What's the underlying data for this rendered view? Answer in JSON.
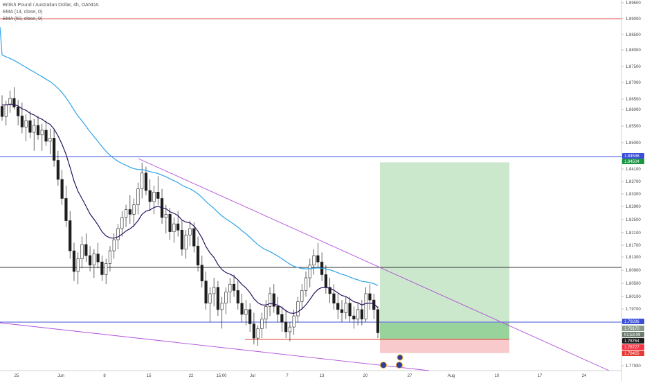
{
  "legend": {
    "symbol": "British Pound / Australian Dollar, 4h, OANDA",
    "ema14": "EMA (14, close, 0)",
    "ema50": "EMA (50, close, 0)"
  },
  "chart_data": {
    "type": "candlestick",
    "symbol": "GBPAUD",
    "timeframe": "4h",
    "source": "OANDA",
    "price_axis": {
      "ylim": [
        1.7765,
        1.8965
      ],
      "ticks": [
        "1.89500",
        "1.89000",
        "1.88500",
        "1.88000",
        "1.87500",
        "1.87000",
        "1.86500",
        "1.86000",
        "1.85500",
        "1.85000",
        "1.84100",
        "1.83700",
        "1.83300",
        "1.82900",
        "1.82500",
        "1.82100",
        "1.81700",
        "1.81300",
        "1.80900",
        "1.80500",
        "1.80100",
        "1.79700",
        "1.77930"
      ]
    },
    "time_axis": {
      "ticks": [
        "25",
        "Jun",
        "8",
        "15",
        "22",
        "15:00",
        "Jul",
        "7",
        "13",
        "20",
        "27",
        "Aug",
        "10",
        "17",
        "24"
      ]
    },
    "price_tags": [
      {
        "value": "1.84536",
        "color": "#3b4fd8"
      },
      {
        "value": "1.84504",
        "color": "#1a9641"
      },
      {
        "value": "1.79286",
        "color": "#3b4fd8"
      },
      {
        "value": "1.79170",
        "color": "#8a9a8a"
      },
      {
        "value": "01:53:09",
        "color": "#6e7e6e"
      },
      {
        "value": "1.78764",
        "color": "#1e1e1e"
      },
      {
        "value": "1.78727",
        "color": "#f23645"
      },
      {
        "value": "1.78455",
        "color": "#e53935"
      }
    ],
    "horizontal_lines": [
      {
        "price": 1.8904,
        "color": "#e04848"
      },
      {
        "price": 1.84536,
        "color": "#3b4fd8"
      },
      {
        "price": 1.8098,
        "color": "#333333"
      },
      {
        "price": 1.79286,
        "color": "#3b4fd8"
      }
    ],
    "trend_lines": [
      {
        "from_t": 118,
        "from_p": 1.8453,
        "to_t": 520,
        "to_p": 1.7775,
        "color": "#b14ed8"
      },
      {
        "from_t": 0,
        "from_p": 1.7923,
        "to_t": 390,
        "to_p": 1.7785,
        "color": "#b14ed8"
      }
    ],
    "position": {
      "type": "long",
      "entry": 1.79,
      "stop": 1.7853,
      "target": 1.84536,
      "start_t": 324,
      "end_t": 435
    },
    "series": [
      {
        "name": "EMA (14, close, 0)",
        "color": "#2a0f5c"
      },
      {
        "name": "EMA (50, close, 0)",
        "color": "#2fa4e7"
      }
    ],
    "candles": [
      [
        1.863,
        1.8665,
        1.8585,
        1.8598
      ],
      [
        1.8598,
        1.8648,
        1.857,
        1.8635
      ],
      [
        1.8635,
        1.868,
        1.861,
        1.8655
      ],
      [
        1.8655,
        1.869,
        1.862,
        1.8628
      ],
      [
        1.8628,
        1.865,
        1.857,
        1.86
      ],
      [
        1.86,
        1.8642,
        1.8545,
        1.8565
      ],
      [
        1.8565,
        1.8605,
        1.852,
        1.8585
      ],
      [
        1.8585,
        1.8615,
        1.853,
        1.8548
      ],
      [
        1.8548,
        1.859,
        1.849,
        1.857
      ],
      [
        1.857,
        1.86,
        1.8525,
        1.854
      ],
      [
        1.854,
        1.8575,
        1.849,
        1.8555
      ],
      [
        1.8555,
        1.8585,
        1.8505,
        1.852
      ],
      [
        1.852,
        1.856,
        1.848,
        1.853
      ],
      [
        1.853,
        1.8555,
        1.844,
        1.846
      ],
      [
        1.846,
        1.849,
        1.838,
        1.84
      ],
      [
        1.84,
        1.843,
        1.832,
        1.834
      ],
      [
        1.834,
        1.838,
        1.825,
        1.827
      ],
      [
        1.827,
        1.83,
        1.815,
        1.8175
      ],
      [
        1.8175,
        1.82,
        1.808,
        1.811
      ],
      [
        1.811,
        1.817,
        1.807,
        1.815
      ],
      [
        1.815,
        1.822,
        1.812,
        1.8195
      ],
      [
        1.8195,
        1.823,
        1.814,
        1.816
      ],
      [
        1.816,
        1.819,
        1.811,
        1.813
      ],
      [
        1.813,
        1.818,
        1.809,
        1.8165
      ],
      [
        1.8165,
        1.82,
        1.812,
        1.814
      ],
      [
        1.814,
        1.816,
        1.808,
        1.81
      ],
      [
        1.81,
        1.815,
        1.807,
        1.8135
      ],
      [
        1.8135,
        1.819,
        1.811,
        1.8175
      ],
      [
        1.8175,
        1.823,
        1.815,
        1.821
      ],
      [
        1.821,
        1.826,
        1.818,
        1.8245
      ],
      [
        1.8245,
        1.83,
        1.822,
        1.828
      ],
      [
        1.828,
        1.832,
        1.825,
        1.8305
      ],
      [
        1.8305,
        1.835,
        1.826,
        1.829
      ],
      [
        1.829,
        1.834,
        1.825,
        1.832
      ],
      [
        1.832,
        1.839,
        1.829,
        1.837
      ],
      [
        1.837,
        1.8453,
        1.834,
        1.842
      ],
      [
        1.842,
        1.844,
        1.835,
        1.8365
      ],
      [
        1.8365,
        1.84,
        1.83,
        1.833
      ],
      [
        1.833,
        1.838,
        1.829,
        1.836
      ],
      [
        1.836,
        1.841,
        1.832,
        1.834
      ],
      [
        1.834,
        1.837,
        1.826,
        1.828
      ],
      [
        1.828,
        1.832,
        1.823,
        1.829
      ],
      [
        1.829,
        1.831,
        1.821,
        1.8235
      ],
      [
        1.8235,
        1.828,
        1.82,
        1.826
      ],
      [
        1.826,
        1.83,
        1.822,
        1.824
      ],
      [
        1.824,
        1.827,
        1.816,
        1.818
      ],
      [
        1.818,
        1.824,
        1.815,
        1.8225
      ],
      [
        1.8225,
        1.827,
        1.819,
        1.8245
      ],
      [
        1.8245,
        1.8265,
        1.817,
        1.819
      ],
      [
        1.819,
        1.822,
        1.811,
        1.813
      ],
      [
        1.813,
        1.816,
        1.806,
        1.808
      ],
      [
        1.808,
        1.811,
        1.799,
        1.801
      ],
      [
        1.801,
        1.806,
        1.795,
        1.804
      ],
      [
        1.804,
        1.809,
        1.8,
        1.806
      ],
      [
        1.806,
        1.808,
        1.797,
        1.799
      ],
      [
        1.799,
        1.803,
        1.793,
        1.801
      ],
      [
        1.801,
        1.806,
        1.7975,
        1.8045
      ],
      [
        1.8045,
        1.809,
        1.801,
        1.807
      ],
      [
        1.807,
        1.81,
        1.803,
        1.805
      ],
      [
        1.805,
        1.808,
        1.799,
        1.801
      ],
      [
        1.801,
        1.804,
        1.795,
        1.7975
      ],
      [
        1.7975,
        1.802,
        1.794,
        1.799
      ],
      [
        1.799,
        1.801,
        1.792,
        1.7945
      ],
      [
        1.7945,
        1.798,
        1.788,
        1.79
      ],
      [
        1.79,
        1.794,
        1.7876,
        1.793
      ],
      [
        1.793,
        1.798,
        1.79,
        1.796
      ],
      [
        1.796,
        1.802,
        1.793,
        1.8
      ],
      [
        1.8,
        1.806,
        1.797,
        1.804
      ],
      [
        1.804,
        1.807,
        1.798,
        1.8
      ],
      [
        1.8,
        1.803,
        1.795,
        1.7975
      ],
      [
        1.7975,
        1.8,
        1.792,
        1.795
      ],
      [
        1.795,
        1.799,
        1.79,
        1.792
      ],
      [
        1.792,
        1.795,
        1.789,
        1.7935
      ],
      [
        1.7935,
        1.799,
        1.791,
        1.797
      ],
      [
        1.797,
        1.803,
        1.795,
        1.8015
      ],
      [
        1.8015,
        1.807,
        1.799,
        1.805
      ],
      [
        1.805,
        1.811,
        1.803,
        1.809
      ],
      [
        1.809,
        1.815,
        1.806,
        1.813
      ],
      [
        1.813,
        1.818,
        1.81,
        1.816
      ],
      [
        1.816,
        1.82,
        1.812,
        1.814
      ],
      [
        1.814,
        1.817,
        1.808,
        1.81
      ],
      [
        1.81,
        1.813,
        1.804,
        1.806
      ],
      [
        1.806,
        1.809,
        1.801,
        1.804
      ],
      [
        1.804,
        1.807,
        1.799,
        1.801
      ],
      [
        1.801,
        1.804,
        1.796,
        1.799
      ],
      [
        1.799,
        1.802,
        1.795,
        1.798
      ],
      [
        1.798,
        1.803,
        1.796,
        1.801
      ],
      [
        1.801,
        1.803,
        1.795,
        1.797
      ],
      [
        1.797,
        1.8,
        1.793,
        1.796
      ],
      [
        1.796,
        1.801,
        1.794,
        1.799
      ],
      [
        1.799,
        1.802,
        1.794,
        1.796
      ],
      [
        1.796,
        1.806,
        1.795,
        1.804
      ],
      [
        1.804,
        1.807,
        1.799,
        1.802
      ],
      [
        1.802,
        1.804,
        1.796,
        1.799
      ],
      [
        1.799,
        1.8,
        1.79,
        1.7917
      ]
    ]
  }
}
